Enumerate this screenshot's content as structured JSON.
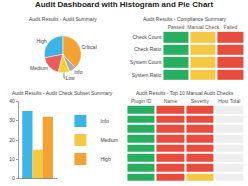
{
  "title": "Audit Dashboard with Histogram and Pie Chart",
  "chart_data": [
    {
      "type": "pie",
      "title": "Audit Results - Audit Summary",
      "categories": [
        "Critical",
        "High",
        "Medium",
        "Low",
        "Info"
      ],
      "values": [
        0.38,
        0.28,
        0.18,
        0.1,
        0.06
      ],
      "colors": [
        "#f4a234",
        "#3cb4e5",
        "#e85d5d",
        "#f4d03f",
        "#aaaaaa"
      ]
    },
    {
      "type": "table",
      "title": "Audit Results - Compliance Summary",
      "columns": [
        "Passed",
        "Manual Check",
        "Failed"
      ],
      "rows": [
        "Check Count",
        "Check Ratio",
        "System Count",
        "System Ratio"
      ],
      "cell_colors": [
        [
          "#27ae60",
          "#f4c842",
          "#e74c3c"
        ],
        [
          "#27ae60",
          "#f4c842",
          "#e74c3c"
        ],
        [
          "#27ae60",
          "#f4c842",
          "#e74c3c"
        ],
        [
          "#27ae60",
          "#f4c842",
          "#e74c3c"
        ]
      ]
    },
    {
      "type": "bar",
      "title": "Audit Results - Audit Check Subset Summary",
      "categories": [
        null
      ],
      "series": [
        {
          "name": "Info",
          "color": "#3cb4e5",
          "values": [
            35
          ]
        },
        {
          "name": "Medium",
          "color": "#f4c842",
          "values": [
            15
          ]
        },
        {
          "name": "High",
          "color": "#f4a234",
          "values": [
            32
          ]
        }
      ],
      "ylim": [
        0,
        40
      ],
      "yticks": [
        0,
        10,
        20,
        30,
        40
      ],
      "grid": false,
      "legend": "right",
      "tick_labels": "y"
    },
    {
      "type": "table",
      "title": "Audit Results - Top 10 Manual Audit Checks",
      "columns": [
        "Plugin ID",
        "Name",
        "Severity",
        "Host Total"
      ],
      "cell_colors": [
        [
          "#27ae60",
          "#e74c3c",
          "#e74c3c",
          "#eeeeee"
        ],
        [
          "#27ae60",
          "#e74c3c",
          "#e74c3c",
          "#eeeeee"
        ],
        [
          "#27ae60",
          "#e74c3c",
          "#e74c3c",
          "#eeeeee"
        ],
        [
          "#27ae60",
          "#e74c3c",
          "#e74c3c",
          "#eeeeee"
        ],
        [
          "#27ae60",
          "#e74c3c",
          "#e74c3c",
          "#eeeeee"
        ],
        [
          "#27ae60",
          "#e74c3c",
          "#e74c3c",
          "#eeeeee"
        ],
        [
          "#27ae60",
          "#e74c3c",
          "#e74c3c",
          "#eeeeee"
        ],
        [
          "#27ae60",
          "#e74c3c",
          "#f4c842",
          "#eeeeee"
        ]
      ]
    }
  ]
}
